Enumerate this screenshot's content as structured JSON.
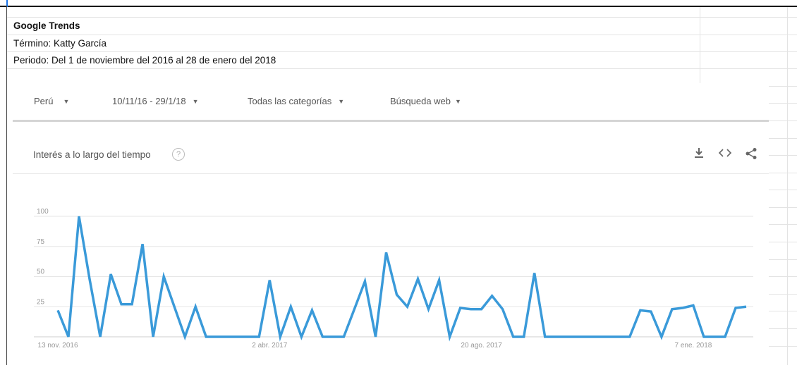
{
  "spreadsheet": {
    "title": "Google Trends",
    "term_line": "Término: Katty García",
    "period_line": "Periodo: Del 1 de noviembre del 2016 al 28 de enero del 2018"
  },
  "filters": {
    "region": "Perú",
    "date_range": "10/11/16 - 29/1/18",
    "category": "Todas las categorías",
    "search_type": "Búsqueda web"
  },
  "chart_card": {
    "title": "Interés a lo largo del tiempo",
    "help_icon": "help-circle-icon",
    "icons": [
      "download-icon",
      "embed-icon",
      "share-icon"
    ]
  },
  "colors": {
    "line": "#3a9ad9",
    "grid": "#e6e6e6"
  },
  "chart_data": {
    "type": "line",
    "title": "",
    "xlabel": "",
    "ylabel": "",
    "ylim": [
      0,
      100
    ],
    "yticks": [
      25,
      50,
      75,
      100
    ],
    "xtick_labels": [
      {
        "label": "13 nov. 2016",
        "index": 0
      },
      {
        "label": "2 abr. 2017",
        "index": 20
      },
      {
        "label": "20 ago. 2017",
        "index": 40
      },
      {
        "label": "7 ene. 2018",
        "index": 60
      }
    ],
    "series": [
      {
        "values": [
          22,
          0,
          100,
          48,
          0,
          52,
          27,
          27,
          77,
          0,
          50,
          25,
          0,
          25,
          0,
          0,
          0,
          0,
          0,
          0,
          47,
          0,
          25,
          0,
          22,
          0,
          0,
          0,
          23,
          46,
          0,
          70,
          35,
          25,
          48,
          23,
          47,
          0,
          24,
          23,
          23,
          34,
          23,
          0,
          0,
          53,
          0,
          0,
          0,
          0,
          0,
          0,
          0,
          0,
          0,
          22,
          21,
          0,
          23,
          24,
          26,
          0,
          0,
          0,
          24,
          25
        ]
      }
    ]
  }
}
